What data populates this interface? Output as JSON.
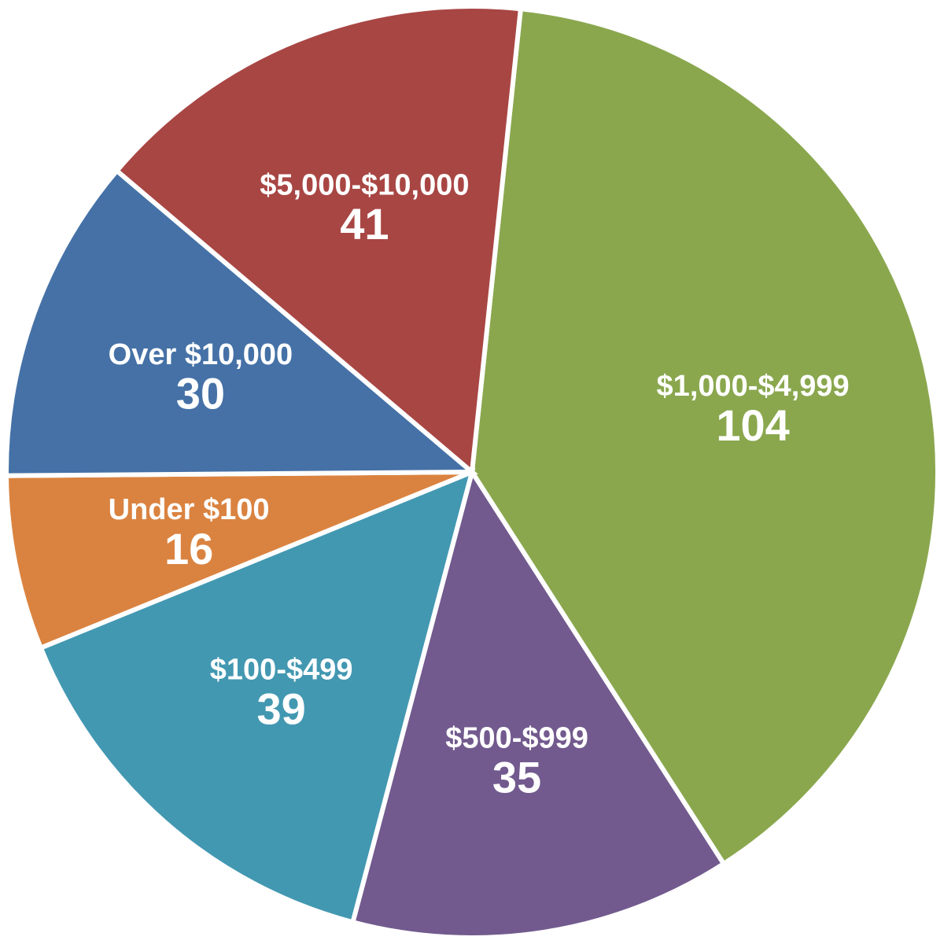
{
  "chart_data": {
    "type": "pie",
    "categories": [
      "$1,000-$4,999",
      "$500-$999",
      "$100-$499",
      "Under $100",
      "Over $10,000",
      "$5,000-$10,000"
    ],
    "values": [
      104,
      35,
      39,
      16,
      30,
      41
    ],
    "colors": [
      "#8aa74e",
      "#725a8e",
      "#4398b1",
      "#da8340",
      "#4571a6",
      "#a84644"
    ]
  }
}
